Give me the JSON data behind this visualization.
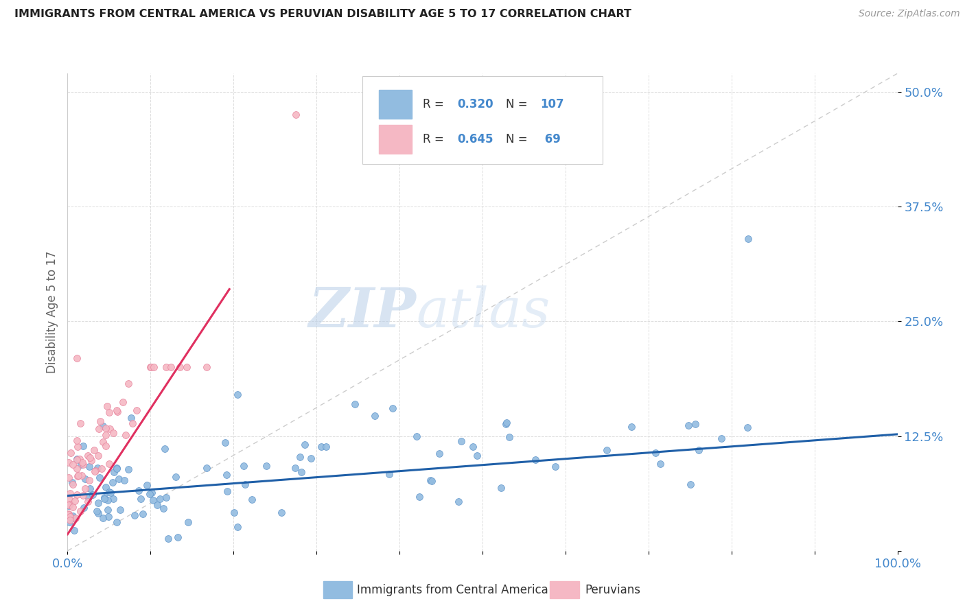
{
  "title": "IMMIGRANTS FROM CENTRAL AMERICA VS PERUVIAN DISABILITY AGE 5 TO 17 CORRELATION CHART",
  "source": "Source: ZipAtlas.com",
  "ylabel": "Disability Age 5 to 17",
  "xlim": [
    0.0,
    1.0
  ],
  "ylim": [
    0.0,
    0.52
  ],
  "watermark_zip": "ZIP",
  "watermark_atlas": "atlas",
  "blue_color": "#92bce0",
  "blue_edge": "#6699cc",
  "pink_color": "#f5b8c4",
  "pink_edge": "#e888a0",
  "trend_blue": "#2060a8",
  "trend_pink": "#e03060",
  "diag_color": "#cccccc",
  "title_color": "#222222",
  "axis_label_color": "#4488cc",
  "source_color": "#999999"
}
